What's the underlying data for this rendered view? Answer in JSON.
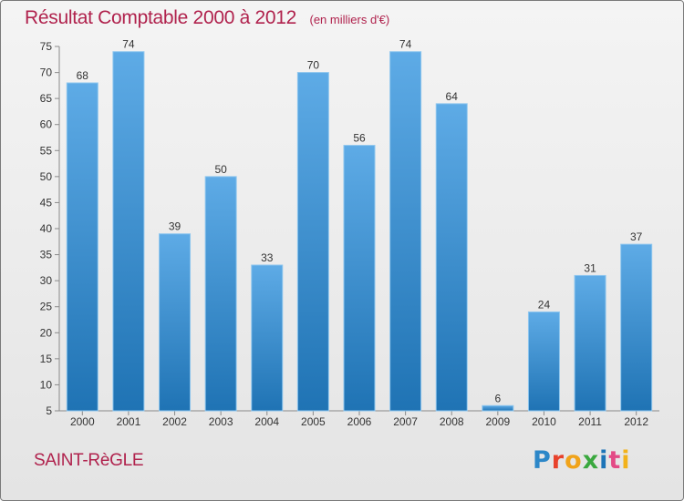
{
  "header": {
    "title": "Résultat Comptable 2000 à 2012",
    "subtitle": "(en milliers d'€)"
  },
  "footer": {
    "commune": "SAINT-RèGLE",
    "logo_letters": [
      "P",
      "r",
      "o",
      "x",
      "i",
      "t",
      "i"
    ]
  },
  "colors": {
    "bar_light": "#5eabe6",
    "bar_dark": "#1f73b4",
    "title": "#b0224d"
  },
  "chart_data": {
    "type": "bar",
    "categories": [
      "2000",
      "2001",
      "2002",
      "2003",
      "2004",
      "2005",
      "2006",
      "2007",
      "2008",
      "2009",
      "2010",
      "2011",
      "2012"
    ],
    "values": [
      68,
      74,
      39,
      50,
      33,
      70,
      56,
      74,
      64,
      6,
      24,
      31,
      37
    ],
    "data_labels": [
      "68",
      "74",
      "39",
      "50",
      "33",
      "70",
      "56",
      "74",
      "64",
      "6",
      "24",
      "31",
      "37"
    ],
    "ylim": [
      5,
      75
    ],
    "yticks": [
      5,
      10,
      15,
      20,
      25,
      30,
      35,
      40,
      45,
      50,
      55,
      60,
      65,
      70,
      75
    ],
    "grid": false,
    "legend": "none"
  }
}
